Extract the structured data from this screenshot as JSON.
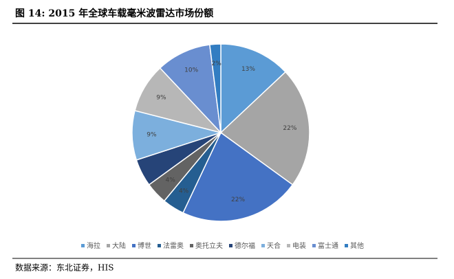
{
  "chart_data": {
    "type": "pie",
    "title": "图 14: 2015 年全球车载毫米波雷达市场份额",
    "categories": [
      "海拉",
      "大陆",
      "博世",
      "法雷奥",
      "奥托立夫",
      "德尔福",
      "天合",
      "电装",
      "富士通",
      "其他"
    ],
    "values": [
      13,
      22,
      22,
      4,
      4,
      5,
      9,
      9,
      10,
      2
    ],
    "value_labels": [
      "13%",
      "22%",
      "22%",
      "4%",
      "4%",
      null,
      "9%",
      "9%",
      "10%",
      "2%"
    ],
    "colors": [
      "#5b9bd5",
      "#a5a5a5",
      "#4472c4",
      "#255e91",
      "#636363",
      "#264478",
      "#7cafdd",
      "#b7b7b7",
      "#698ed0",
      "#327dc2"
    ],
    "legend": "bottom",
    "source": "数据来源：东北证券，HIS"
  }
}
